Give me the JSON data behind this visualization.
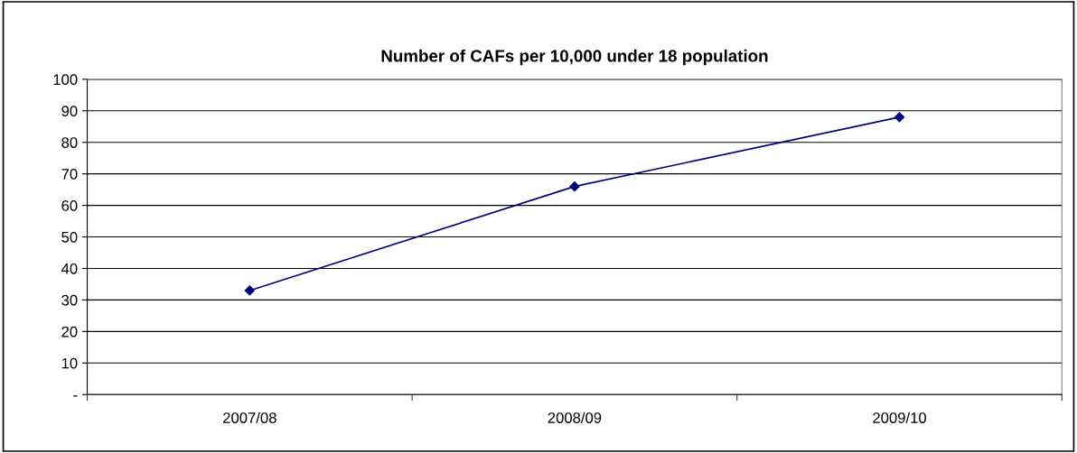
{
  "chart_data": {
    "type": "line",
    "title": "Number of CAFs per 10,000 under 18 population",
    "categories": [
      "2007/08",
      "2008/09",
      "2009/10"
    ],
    "series": [
      {
        "color": "#000080",
        "values": [
          33,
          66,
          88
        ]
      }
    ],
    "ylim": [
      0,
      100
    ],
    "yticks": [
      {
        "value": 0,
        "label": "-"
      },
      10,
      20,
      30,
      40,
      50,
      60,
      70,
      80,
      90,
      100
    ],
    "grid": "y",
    "marker": "diamond",
    "line_style": "solid"
  }
}
